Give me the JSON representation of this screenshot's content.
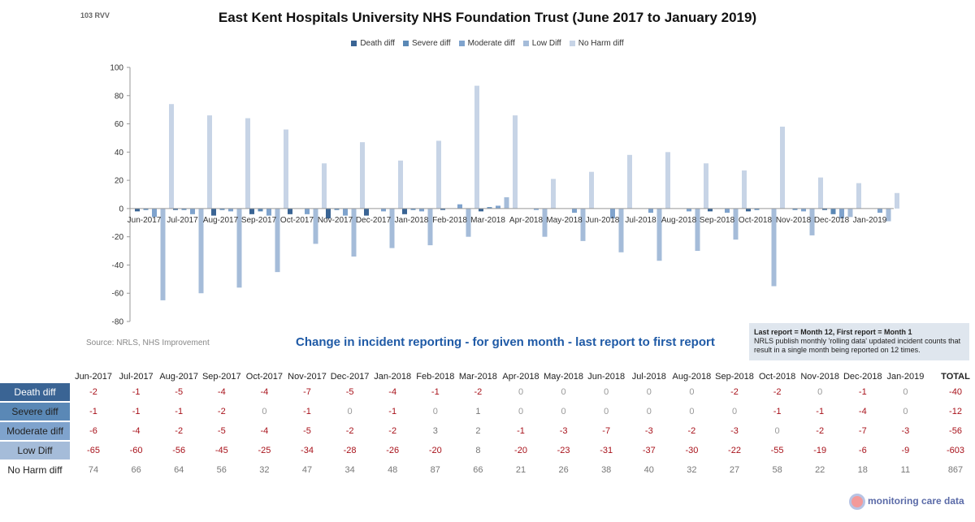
{
  "header": {
    "ref": "103 RVV",
    "title": "East Kent Hospitals University NHS Foundation Trust (June 2017 to January 2019)"
  },
  "footer": {
    "source": "Source: NRLS, NHS Improvement",
    "subtitle": "Change in incident reporting - for given month - last report to first report",
    "note_title": "Last report = Month 12, First report = Month 1",
    "note_body": "NRLS publish monthly 'rolling data' updated incident counts that result in a single month being reported on 12 times.",
    "logo_text": "monitoring care data"
  },
  "chart_data": {
    "type": "bar",
    "title": "East Kent Hospitals University NHS Foundation Trust (June 2017 to January 2019)",
    "xlabel": "",
    "ylabel": "",
    "ylim": [
      -80,
      100
    ],
    "yticks": [
      -80,
      -60,
      -40,
      -20,
      0,
      20,
      40,
      60,
      80,
      100
    ],
    "categories": [
      "Jun-2017",
      "Jul-2017",
      "Aug-2017",
      "Sep-2017",
      "Oct-2017",
      "Nov-2017",
      "Dec-2017",
      "Jan-2018",
      "Feb-2018",
      "Mar-2018",
      "Apr-2018",
      "May-2018",
      "Jun-2018",
      "Jul-2018",
      "Aug-2018",
      "Sep-2018",
      "Oct-2018",
      "Nov-2018",
      "Dec-2018",
      "Jan-2019"
    ],
    "series": [
      {
        "name": "Death diff",
        "color": "#3a6494",
        "values": [
          -2,
          -1,
          -5,
          -4,
          -4,
          -7,
          -5,
          -4,
          -1,
          -2,
          0,
          0,
          0,
          0,
          0,
          -2,
          -2,
          0,
          -1,
          0
        ]
      },
      {
        "name": "Severe diff",
        "color": "#5a88b6",
        "values": [
          -1,
          -1,
          -1,
          -2,
          0,
          -1,
          0,
          -1,
          0,
          1,
          0,
          0,
          0,
          0,
          0,
          0,
          -1,
          -1,
          -4,
          0
        ]
      },
      {
        "name": "Moderate diff",
        "color": "#7fa3cd",
        "values": [
          -6,
          -4,
          -2,
          -5,
          -4,
          -5,
          -2,
          -2,
          3,
          2,
          -1,
          -3,
          -7,
          -3,
          -2,
          -3,
          0,
          -2,
          -7,
          -3
        ]
      },
      {
        "name": "Low Diff",
        "color": "#a5bcd9",
        "values": [
          -65,
          -60,
          -56,
          -45,
          -25,
          -34,
          -28,
          -26,
          -20,
          8,
          -20,
          -23,
          -31,
          -37,
          -30,
          -22,
          -55,
          -19,
          -6,
          -9
        ]
      },
      {
        "name": "No Harm diff",
        "color": "#c7d4e6",
        "values": [
          74,
          66,
          64,
          56,
          32,
          47,
          34,
          48,
          87,
          66,
          21,
          26,
          38,
          40,
          32,
          27,
          58,
          22,
          18,
          11
        ]
      }
    ],
    "totals": {
      "header": "TOTAL",
      "values": [
        -40,
        -12,
        -56,
        -603,
        867
      ]
    }
  }
}
